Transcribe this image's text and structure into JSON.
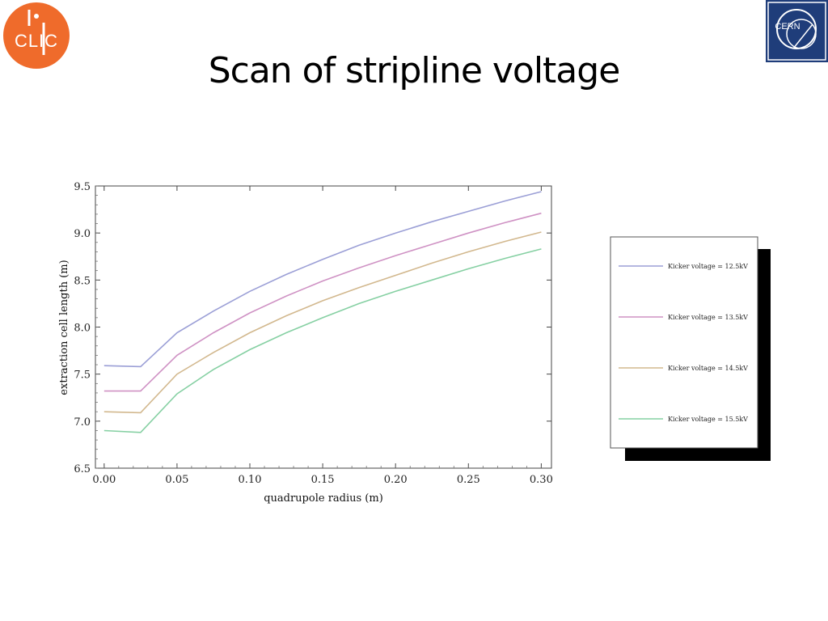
{
  "header": {
    "title": "Scan of stripline voltage",
    "logo_left_text": "CLIC",
    "logo_right_text": "CERN"
  },
  "colors": {
    "clic_orange": "#ef6b2b",
    "cern_blue": "#1f3d7a"
  },
  "chart_data": {
    "type": "line",
    "title": "",
    "xlabel": "quadrupole radius (m)",
    "ylabel": "extraction cell length (m)",
    "xlim": [
      -0.006,
      0.307
    ],
    "ylim": [
      6.5,
      9.5
    ],
    "xticks": [
      0.0,
      0.05,
      0.1,
      0.15,
      0.2,
      0.25,
      0.3
    ],
    "xtick_labels": [
      "0.00",
      "0.05",
      "0.10",
      "0.15",
      "0.20",
      "0.25",
      "0.30"
    ],
    "yticks": [
      6.5,
      7.0,
      7.5,
      8.0,
      8.5,
      9.0,
      9.5
    ],
    "ytick_labels": [
      "6.5",
      "7.0",
      "7.5",
      "8.0",
      "8.5",
      "9.0",
      "9.5"
    ],
    "grid": false,
    "legend_position": "right",
    "x": [
      0.0,
      0.025,
      0.05,
      0.075,
      0.1,
      0.125,
      0.15,
      0.175,
      0.2,
      0.225,
      0.25,
      0.275,
      0.3
    ],
    "series": [
      {
        "name": "Kicker voltage = 12.5kV",
        "color": "#9b9fd6",
        "values": [
          7.59,
          7.58,
          7.94,
          8.17,
          8.38,
          8.56,
          8.72,
          8.87,
          9.0,
          9.12,
          9.23,
          9.34,
          9.44
        ]
      },
      {
        "name": "Kicker voltage = 13.5kV",
        "color": "#cf92c4",
        "values": [
          7.32,
          7.32,
          7.7,
          7.94,
          8.15,
          8.33,
          8.49,
          8.63,
          8.76,
          8.88,
          9.0,
          9.11,
          9.21
        ]
      },
      {
        "name": "Kicker voltage = 14.5kV",
        "color": "#d2b88e",
        "values": [
          7.1,
          7.09,
          7.5,
          7.73,
          7.94,
          8.12,
          8.28,
          8.42,
          8.55,
          8.68,
          8.8,
          8.91,
          9.01
        ]
      },
      {
        "name": "Kicker voltage = 15.5kV",
        "color": "#86d0a3",
        "values": [
          6.9,
          6.88,
          7.29,
          7.55,
          7.76,
          7.94,
          8.1,
          8.25,
          8.38,
          8.5,
          8.62,
          8.73,
          8.83
        ]
      }
    ]
  }
}
